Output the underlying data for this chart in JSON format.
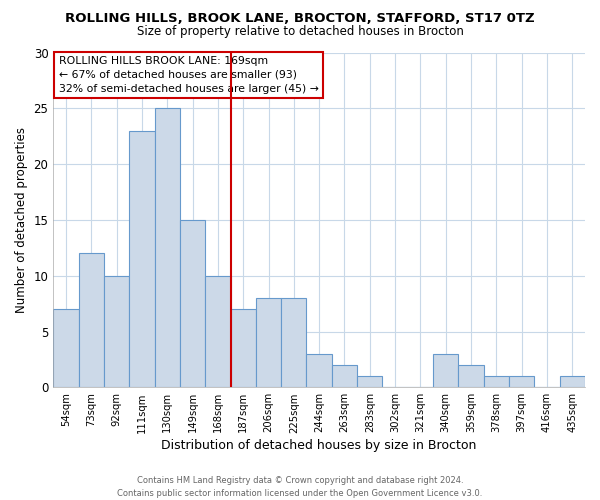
{
  "title": "ROLLING HILLS, BROOK LANE, BROCTON, STAFFORD, ST17 0TZ",
  "subtitle": "Size of property relative to detached houses in Brocton",
  "xlabel": "Distribution of detached houses by size in Brocton",
  "ylabel": "Number of detached properties",
  "categories": [
    "54sqm",
    "73sqm",
    "92sqm",
    "111sqm",
    "130sqm",
    "149sqm",
    "168sqm",
    "187sqm",
    "206sqm",
    "225sqm",
    "244sqm",
    "263sqm",
    "283sqm",
    "302sqm",
    "321sqm",
    "340sqm",
    "359sqm",
    "378sqm",
    "397sqm",
    "416sqm",
    "435sqm"
  ],
  "values": [
    7,
    12,
    10,
    23,
    25,
    15,
    10,
    7,
    8,
    8,
    3,
    2,
    1,
    0,
    0,
    3,
    2,
    1,
    1,
    0,
    1
  ],
  "bar_color": "#ccd9e8",
  "bar_edge_color": "#6699cc",
  "highlight_line_index": 6,
  "highlight_line_color": "#cc0000",
  "annotation_text": "ROLLING HILLS BROOK LANE: 169sqm\n← 67% of detached houses are smaller (93)\n32% of semi-detached houses are larger (45) →",
  "annotation_box_color": "#ffffff",
  "annotation_box_edge": "#cc0000",
  "ylim": [
    0,
    30
  ],
  "yticks": [
    0,
    5,
    10,
    15,
    20,
    25,
    30
  ],
  "footer_line1": "Contains HM Land Registry data © Crown copyright and database right 2024.",
  "footer_line2": "Contains public sector information licensed under the Open Government Licence v3.0.",
  "bg_color": "#ffffff",
  "grid_color": "#c8d8e8"
}
